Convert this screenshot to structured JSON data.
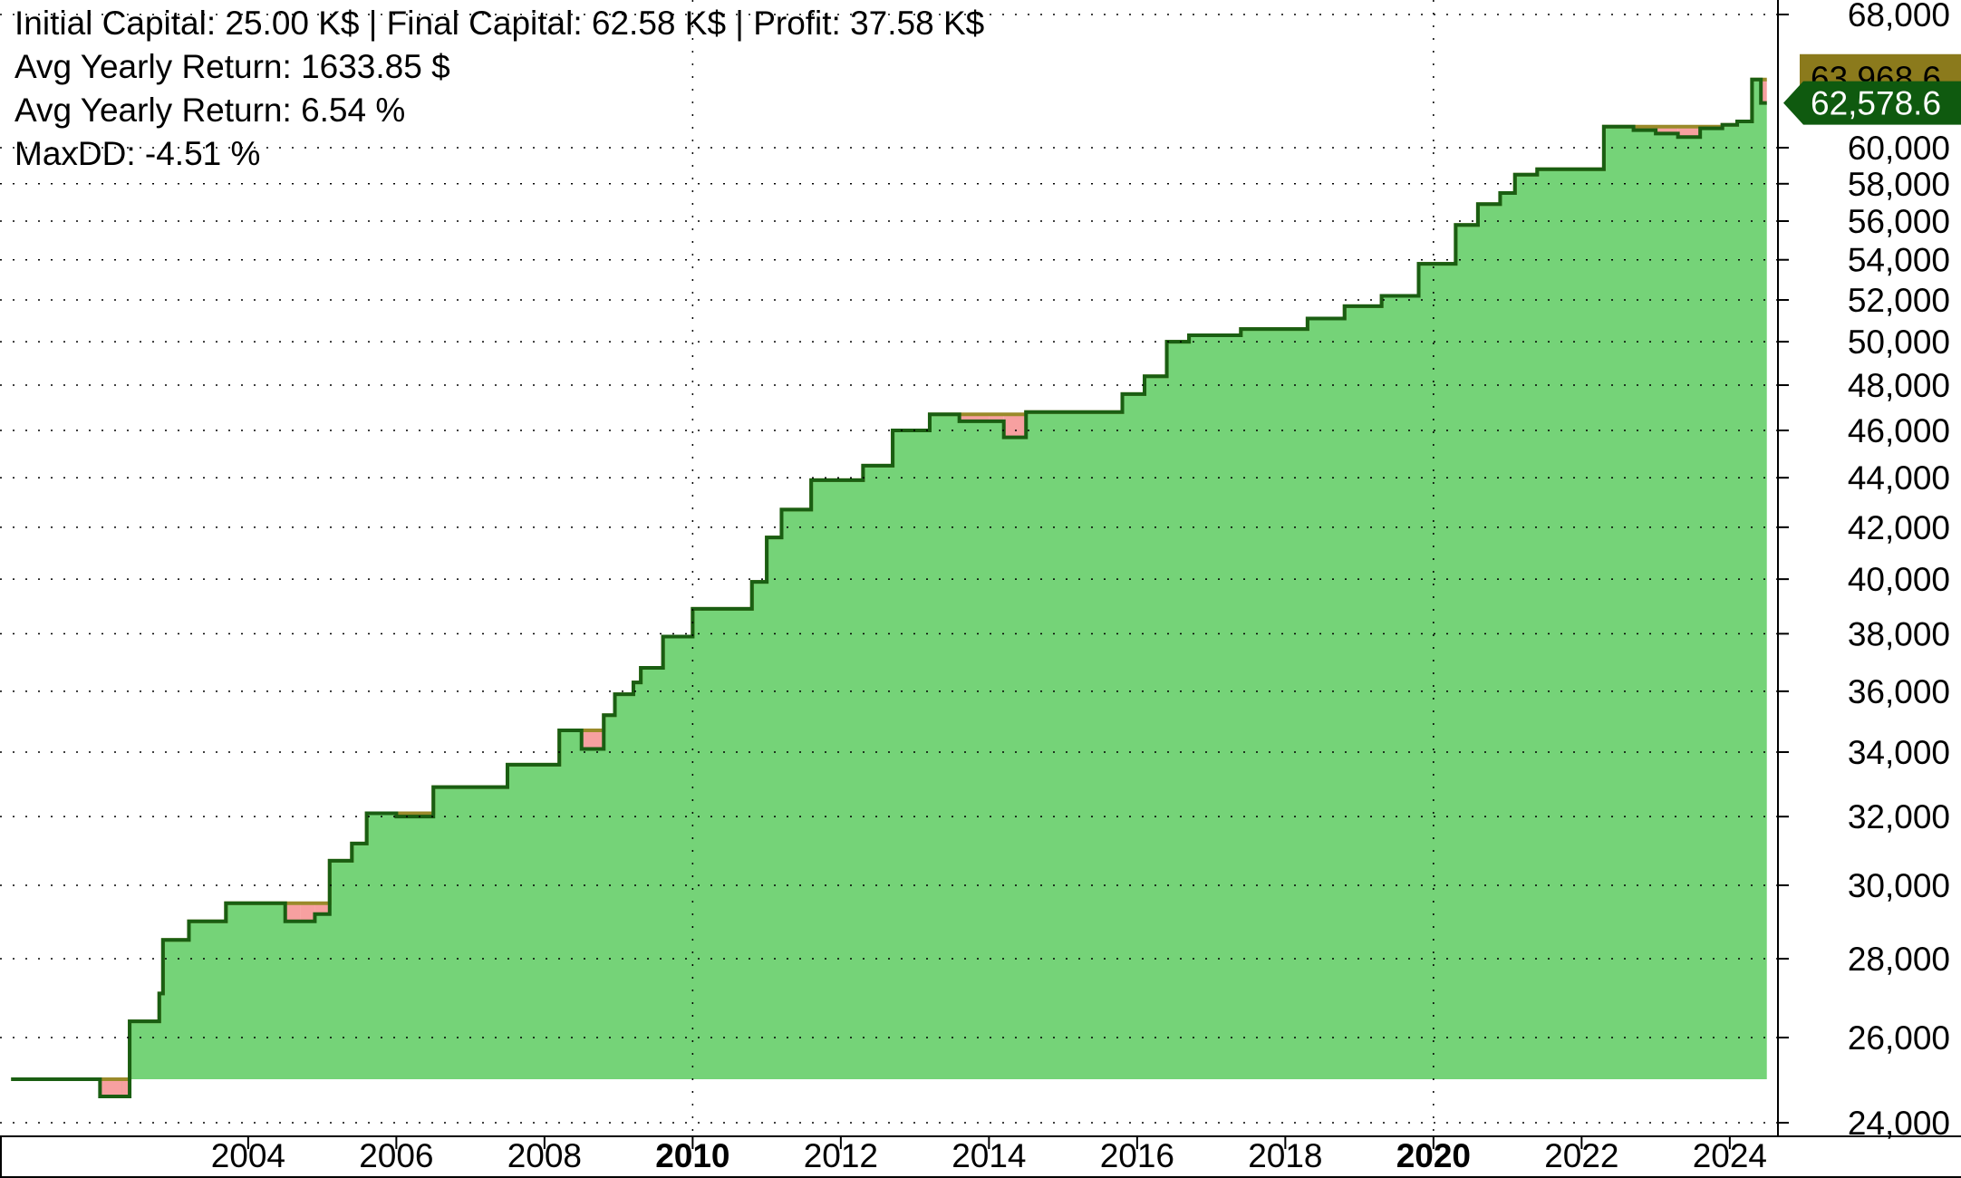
{
  "stats": {
    "line1": "Initial Capital: 25.00 K$ | Final Capital: 62.58 K$ | Profit: 37.58 K$",
    "line2": "Avg Yearly Return: 1633.85 $",
    "line3": "Avg Yearly Return: 6.54 %",
    "line4": "MaxDD: -4.51 %"
  },
  "badges": {
    "peak": {
      "label": "63,968.6",
      "color": "#8b7a1c",
      "text_color": "#000000"
    },
    "equity": {
      "label": "62,578.6",
      "color": "#0f5a0f",
      "text_color": "#ffffff"
    }
  },
  "colors": {
    "fill": "#75d378",
    "line": "#1a5e12",
    "drawdown": "#f7a0a0",
    "peak_line": "#9a8a2a",
    "grid": "#000000"
  },
  "chart_data": {
    "type": "area",
    "title": "",
    "xlabel": "",
    "ylabel": "",
    "x_ticks": [
      {
        "year": 2004,
        "label": "2004",
        "bold": false
      },
      {
        "year": 2006,
        "label": "2006",
        "bold": false
      },
      {
        "year": 2008,
        "label": "2008",
        "bold": false
      },
      {
        "year": 2010,
        "label": "2010",
        "bold": true
      },
      {
        "year": 2012,
        "label": "2012",
        "bold": false
      },
      {
        "year": 2014,
        "label": "2014",
        "bold": false
      },
      {
        "year": 2016,
        "label": "2016",
        "bold": false
      },
      {
        "year": 2018,
        "label": "2018",
        "bold": false
      },
      {
        "year": 2020,
        "label": "2020",
        "bold": true
      },
      {
        "year": 2022,
        "label": "2022",
        "bold": false
      },
      {
        "year": 2024,
        "label": "2024",
        "bold": false
      }
    ],
    "y_ticks": [
      {
        "value": 24000,
        "label": "24,000"
      },
      {
        "value": 26000,
        "label": "26,000"
      },
      {
        "value": 28000,
        "label": "28,000"
      },
      {
        "value": 30000,
        "label": "30,000"
      },
      {
        "value": 32000,
        "label": "32,000"
      },
      {
        "value": 34000,
        "label": "34,000"
      },
      {
        "value": 36000,
        "label": "36,000"
      },
      {
        "value": 38000,
        "label": "38,000"
      },
      {
        "value": 40000,
        "label": "40,000"
      },
      {
        "value": 42000,
        "label": "42,000"
      },
      {
        "value": 44000,
        "label": "44,000"
      },
      {
        "value": 46000,
        "label": "46,000"
      },
      {
        "value": 48000,
        "label": "48,000"
      },
      {
        "value": 50000,
        "label": "50,000"
      },
      {
        "value": 52000,
        "label": "52,000"
      },
      {
        "value": 54000,
        "label": "54,000"
      },
      {
        "value": 56000,
        "label": "56,000"
      },
      {
        "value": 58000,
        "label": "58,000"
      },
      {
        "value": 60000,
        "label": "60,000"
      },
      {
        "value": 68000,
        "label": "68,000"
      }
    ],
    "xlim": [
      2000.65,
      2024.65
    ],
    "ylim": [
      24000,
      68000
    ],
    "y_scale": "log",
    "grid": true,
    "baseline": 25000,
    "series": [
      {
        "x": [
          2000.8,
          2001.9,
          2002.0,
          2002.3,
          2002.4,
          2002.8,
          2002.85,
          2003.15,
          2003.2,
          2003.3,
          2003.7,
          2004.0,
          2004.5,
          2004.7,
          2004.9,
          2005.1,
          2005.4,
          2005.6,
          2005.8,
          2006.0,
          2006.5,
          2006.7,
          2007.0,
          2007.5,
          2007.7,
          2008.2,
          2008.35,
          2008.5,
          2008.8,
          2008.95,
          2009.2,
          2009.3,
          2009.6,
          2010.0,
          2010.4,
          2010.8,
          2011.0,
          2011.2,
          2011.6,
          2011.9,
          2012.3,
          2012.7,
          2013.2,
          2013.6,
          2014.0,
          2014.2,
          2014.5,
          2015.0,
          2015.3,
          2015.8,
          2016.1,
          2016.4,
          2016.7,
          2017.0,
          2017.4,
          2017.8,
          2018.3,
          2018.8,
          2019.3,
          2019.8,
          2020.3,
          2020.6,
          2020.9,
          2021.1,
          2021.4,
          2021.7,
          2022.3,
          2022.7,
          2023.0,
          2023.3,
          2023.6,
          2023.9,
          2024.1,
          2024.3,
          2024.42,
          2024.5
        ],
        "y": [
          25000,
          25000,
          24600,
          24600,
          26400,
          27100,
          28500,
          28500,
          29000,
          29000,
          29500,
          29500,
          29000,
          29000,
          29200,
          30700,
          31200,
          32100,
          32100,
          32000,
          32900,
          32900,
          32900,
          33600,
          33600,
          34700,
          34700,
          34100,
          35200,
          35900,
          36300,
          36800,
          37900,
          38900,
          38900,
          39900,
          41600,
          42700,
          43900,
          43900,
          44500,
          46000,
          46700,
          46400,
          46400,
          45700,
          46800,
          46800,
          46800,
          47600,
          48400,
          50000,
          50300,
          50300,
          50600,
          50600,
          51100,
          51700,
          52200,
          53800,
          55800,
          56900,
          57500,
          58500,
          58800,
          58800,
          61200,
          61000,
          60800,
          60600,
          61100,
          61300,
          61500,
          63968.6,
          62578.6,
          62578.6
        ]
      }
    ],
    "last_value": 62578.6,
    "peak_value": 63968.6
  }
}
